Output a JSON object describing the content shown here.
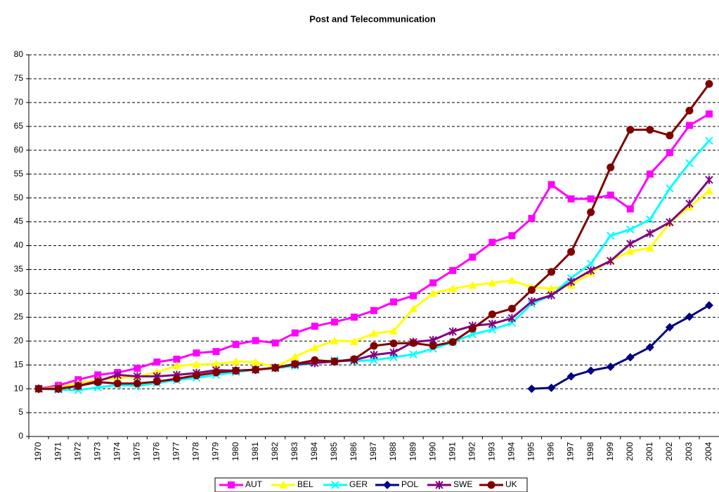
{
  "chart_data": {
    "type": "line",
    "title": "Post and Telecommunication",
    "categories": [
      "1970",
      "1971",
      "1972",
      "1973",
      "1974",
      "1975",
      "1976",
      "1977",
      "1978",
      "1979",
      "1980",
      "1981",
      "1982",
      "1983",
      "1984",
      "1985",
      "1986",
      "1987",
      "1988",
      "1989",
      "1990",
      "1991",
      "1992",
      "1993",
      "1994",
      "1995",
      "1996",
      "1997",
      "1998",
      "1999",
      "2000",
      "2001",
      "2002",
      "2003",
      "2004"
    ],
    "ylim": [
      0,
      80
    ],
    "yticks": [
      0,
      5,
      10,
      15,
      20,
      25,
      30,
      35,
      40,
      45,
      50,
      55,
      60,
      65,
      70,
      75,
      80
    ],
    "grid": true,
    "legend": "bottom",
    "series": [
      {
        "name": "AUT",
        "color": "#ff00ff",
        "marker": "square",
        "values": [
          10,
          10.7,
          11.9,
          12.9,
          13.4,
          14.3,
          15.6,
          16.2,
          17.5,
          17.8,
          19.3,
          20.1,
          19.6,
          21.7,
          23.1,
          24,
          25,
          26.4,
          28.2,
          29.5,
          32.2,
          34.8,
          37.6,
          40.7,
          42.1,
          45.7,
          52.8,
          49.8,
          49.8,
          50.6,
          47.7,
          55,
          59.5,
          65.2,
          67.6
        ]
      },
      {
        "name": "BEL",
        "color": "#ffff00",
        "marker": "triangle",
        "values": [
          10,
          10.3,
          11.2,
          11.9,
          12.2,
          12.5,
          13.5,
          14.8,
          15.1,
          15.2,
          15.7,
          15.6,
          14.5,
          16.7,
          18.6,
          20.1,
          19.9,
          21.6,
          22.1,
          26.8,
          30,
          31,
          31.7,
          32.2,
          32.7,
          31.3,
          31,
          31.7,
          34.3,
          36.9,
          38.8,
          39.5,
          44.8,
          48.1,
          51.5
        ]
      },
      {
        "name": "GER",
        "color": "#00ffff",
        "marker": "x",
        "values": [
          10,
          9.8,
          9.7,
          10.3,
          10.8,
          10.6,
          11.2,
          11.8,
          12.3,
          12.9,
          13.5,
          14,
          14.3,
          14.8,
          15.4,
          16,
          15.8,
          16,
          16.6,
          17.2,
          18.4,
          19.8,
          21.4,
          22.4,
          23.8,
          27.8,
          29.6,
          33.2,
          36.2,
          42.1,
          43.4,
          45.5,
          52,
          57.3,
          62
        ]
      },
      {
        "name": "POL",
        "color": "#000080",
        "marker": "diamond",
        "values": [
          null,
          null,
          null,
          null,
          null,
          null,
          null,
          null,
          null,
          null,
          null,
          null,
          null,
          null,
          null,
          null,
          null,
          null,
          null,
          null,
          null,
          null,
          null,
          null,
          null,
          10,
          10.2,
          12.6,
          13.8,
          14.6,
          16.6,
          18.7,
          22.9,
          25.1,
          27.5
        ]
      },
      {
        "name": "SWE",
        "color": "#800080",
        "marker": "star",
        "values": [
          10,
          10,
          10.6,
          11.6,
          12.9,
          12.6,
          12.6,
          12.9,
          13.3,
          13.9,
          13.8,
          14,
          14.4,
          15.1,
          15.4,
          15.7,
          16,
          17.1,
          17.6,
          19.8,
          20.2,
          22,
          23.2,
          23.6,
          24.8,
          28.3,
          29.6,
          32.4,
          34.8,
          36.8,
          40.4,
          42.6,
          44.9,
          48.8,
          53.8
        ]
      },
      {
        "name": "UK",
        "color": "#800000",
        "marker": "circle",
        "values": [
          10,
          10,
          10.6,
          11.4,
          11.1,
          11.1,
          11.5,
          12.1,
          12.8,
          13.4,
          13.8,
          14,
          14.4,
          15.2,
          16,
          15.7,
          16.2,
          19,
          19.5,
          19.6,
          19,
          19.8,
          22.6,
          25.6,
          26.8,
          30.7,
          34.5,
          38.7,
          47,
          56.4,
          64.3,
          64.3,
          63.1,
          68.3,
          73.9
        ]
      }
    ]
  }
}
